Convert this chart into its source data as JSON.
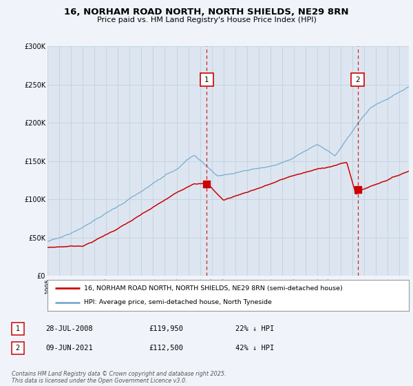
{
  "title": "16, NORHAM ROAD NORTH, NORTH SHIELDS, NE29 8RN",
  "subtitle": "Price paid vs. HM Land Registry's House Price Index (HPI)",
  "background_color": "#f0f4fa",
  "plot_bg_color": "#dde6f0",
  "legend_label_red": "16, NORHAM ROAD NORTH, NORTH SHIELDS, NE29 8RN (semi-detached house)",
  "legend_label_blue": "HPI: Average price, semi-detached house, North Tyneside",
  "transaction1_date": "28-JUL-2008",
  "transaction1_price": "£119,950",
  "transaction1_hpi": "22% ↓ HPI",
  "transaction1_year": 2008.57,
  "transaction1_price_val": 119950,
  "transaction2_date": "09-JUN-2021",
  "transaction2_price": "£112,500",
  "transaction2_hpi": "42% ↓ HPI",
  "transaction2_year": 2021.44,
  "transaction2_price_val": 112500,
  "footer": "Contains HM Land Registry data © Crown copyright and database right 2025.\nThis data is licensed under the Open Government Licence v3.0.",
  "ylim": [
    0,
    300000
  ],
  "xlim_start": 1995,
  "xlim_end": 2025.8,
  "red_color": "#cc0000",
  "blue_color": "#7aaad0",
  "grid_color": "#c8d4e4",
  "vline_color": "#cc0000"
}
